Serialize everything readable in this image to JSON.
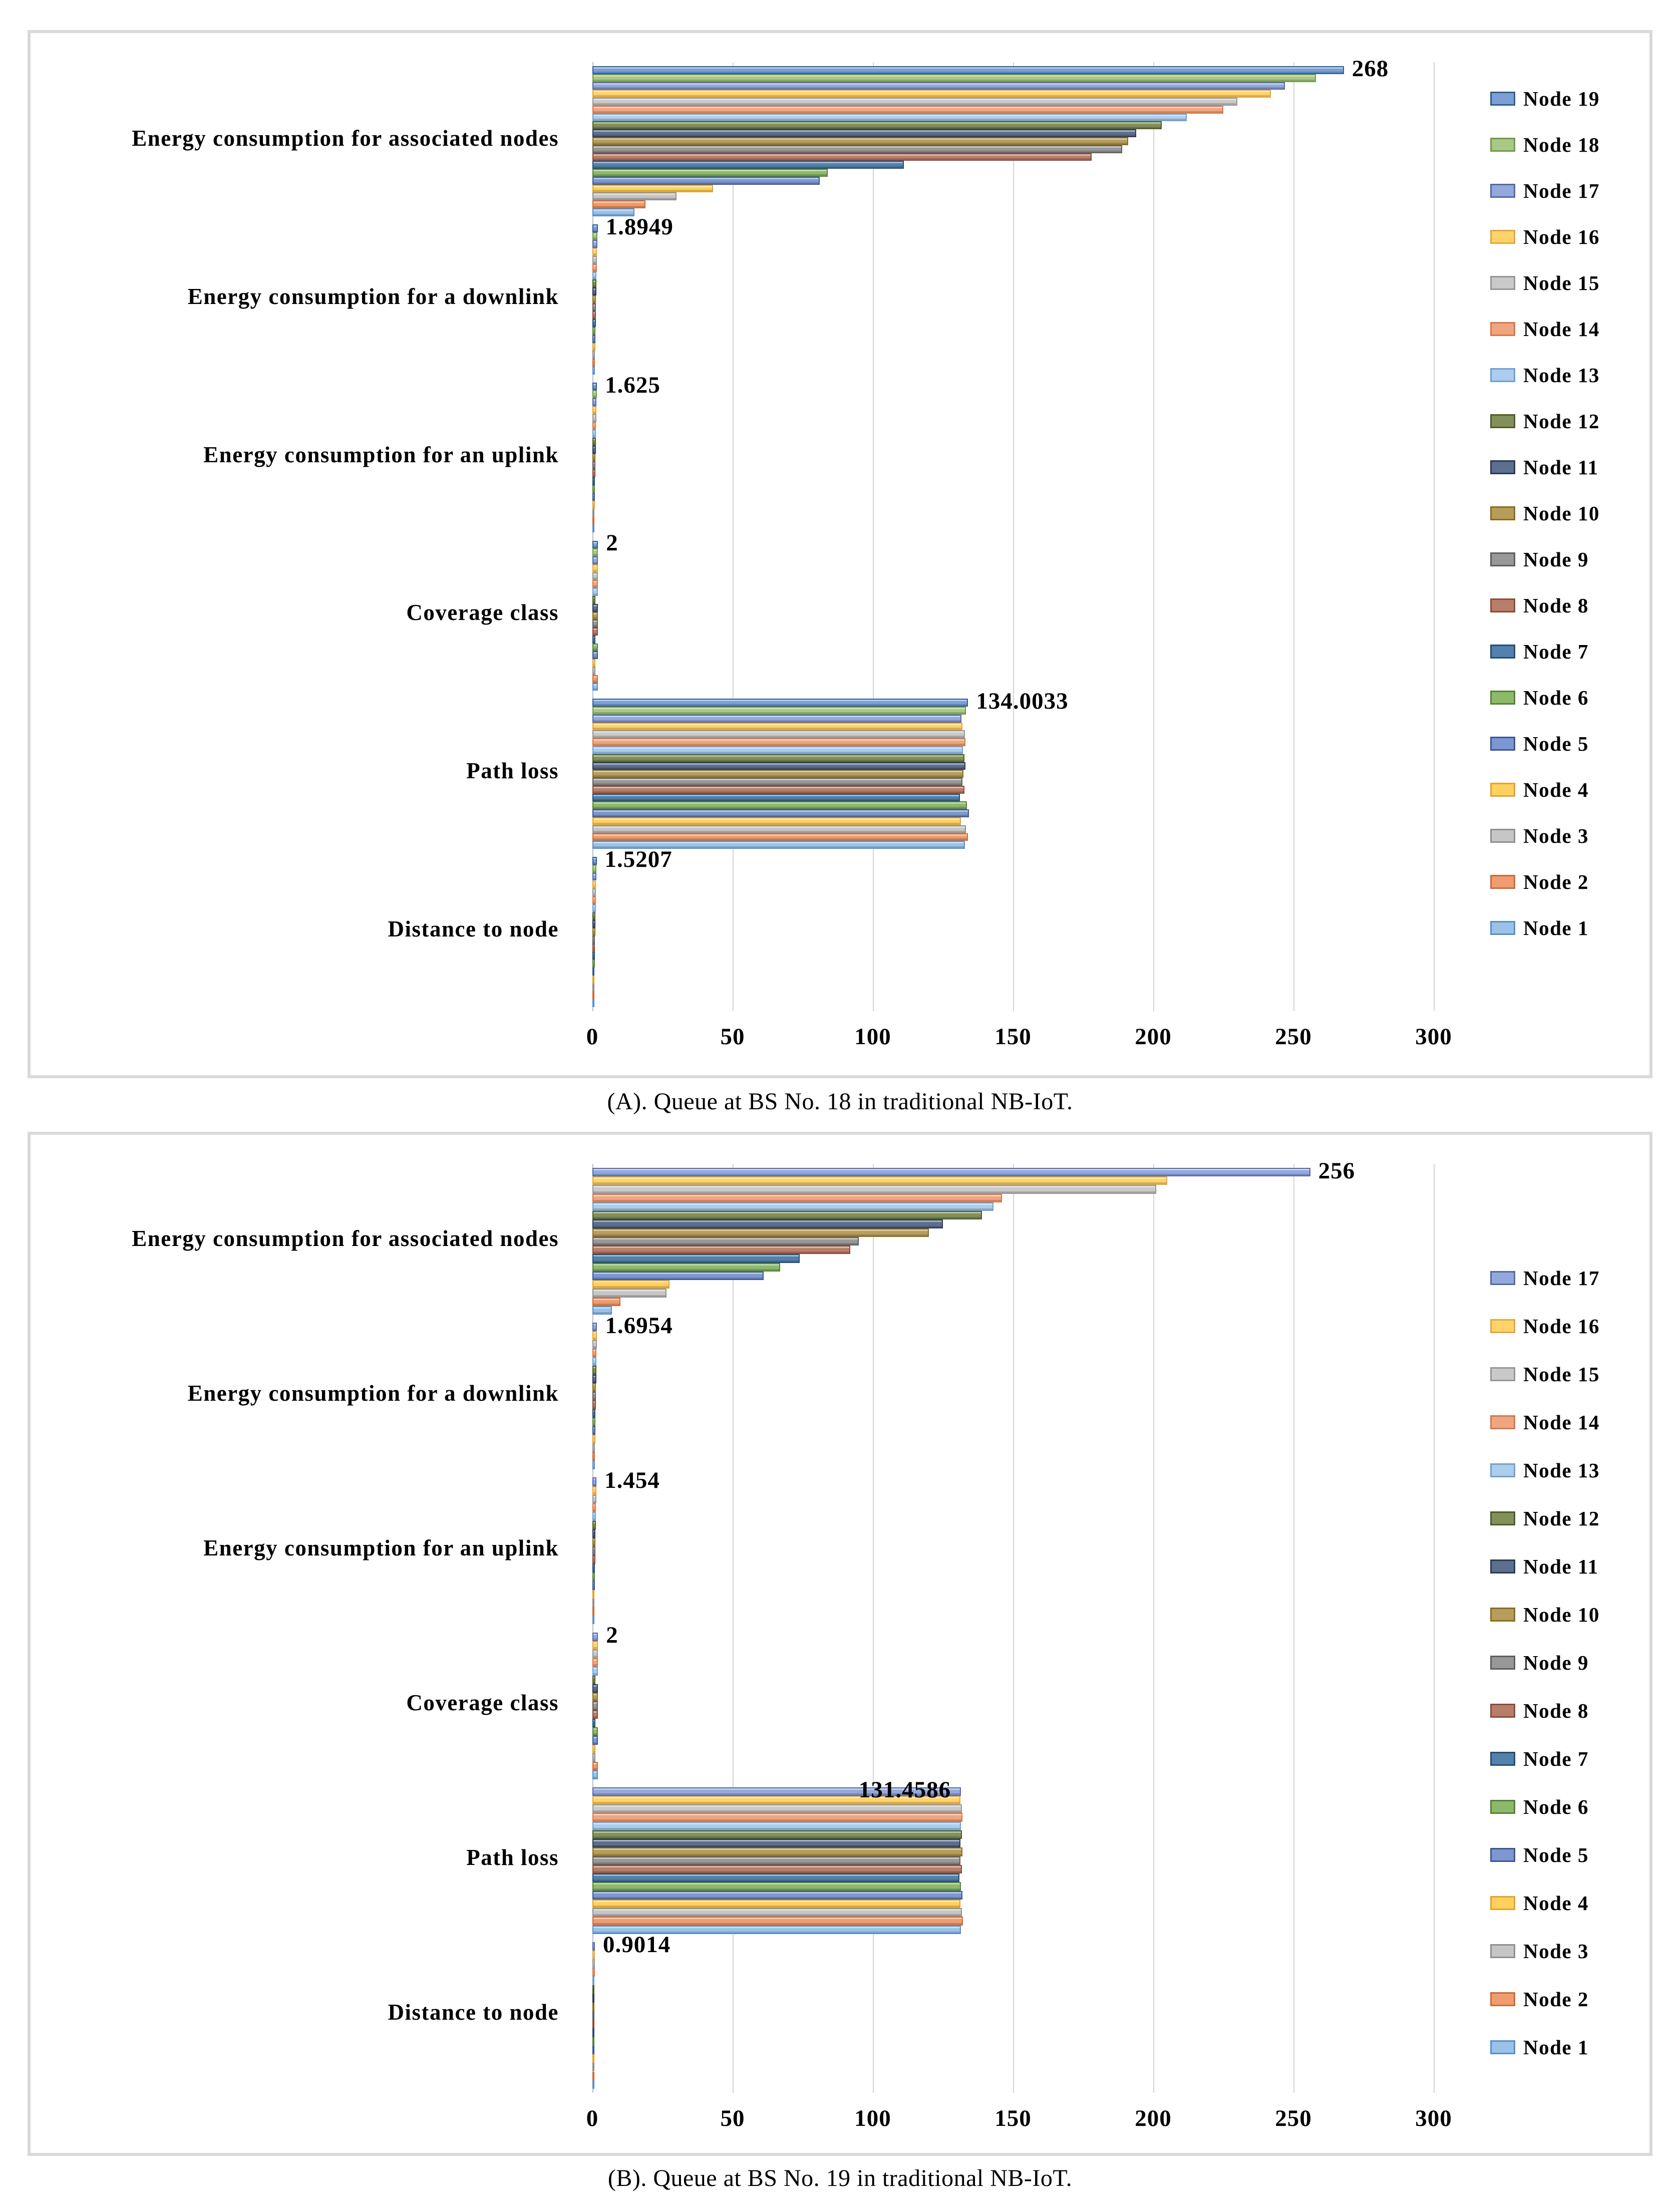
{
  "figure": {
    "captions": {
      "a": "(A). Queue at BS No. 18 in traditional NB-IoT.",
      "b": "(B). Queue at BS No. 19 in traditional NB-IoT."
    }
  },
  "palette": {
    "Node 1": {
      "fill": "#9AC2E7",
      "border": "#5590C9"
    },
    "Node 2": {
      "fill": "#EE9C70",
      "border": "#CE6B35"
    },
    "Node 3": {
      "fill": "#C6C6C6",
      "border": "#8F8F8F"
    },
    "Node 4": {
      "fill": "#FFD15E",
      "border": "#DFA32F"
    },
    "Node 5": {
      "fill": "#7C97D1",
      "border": "#3C5793"
    },
    "Node 6": {
      "fill": "#8DB96A",
      "border": "#558235"
    },
    "Node 7": {
      "fill": "#5380AC",
      "border": "#234E75"
    },
    "Node 8": {
      "fill": "#B97E69",
      "border": "#8C4B38"
    },
    "Node 9": {
      "fill": "#989898",
      "border": "#5E5E5E"
    },
    "Node 10": {
      "fill": "#B79D5C",
      "border": "#8A6D1D"
    },
    "Node 11": {
      "fill": "#5D6F8E",
      "border": "#2A3A58"
    },
    "Node 12": {
      "fill": "#82905A",
      "border": "#4D5D25"
    },
    "Node 13": {
      "fill": "#ABCDEE",
      "border": "#6FA0CE"
    },
    "Node 14": {
      "fill": "#F0A580",
      "border": "#D4784A"
    },
    "Node 15": {
      "fill": "#C9C9C9",
      "border": "#969696"
    },
    "Node 16": {
      "fill": "#FFD36A",
      "border": "#E2A63B"
    },
    "Node 17": {
      "fill": "#93A9DC",
      "border": "#5568A8"
    },
    "Node 18": {
      "fill": "#A9C887",
      "border": "#6F9C44"
    },
    "Node 19": {
      "fill": "#7AA0D4",
      "border": "#2F5E94"
    }
  },
  "chart_data": [
    {
      "type": "bar",
      "orientation": "horizontal",
      "caption": "(A). Queue at BS No. 18 in traditional NB-IoT.",
      "categories": [
        "Energy consumption for associated nodes",
        "Energy consumption for a downlink",
        "Energy consumption for an uplink",
        "Coverage class",
        "Path loss",
        "Distance to node"
      ],
      "xlim": [
        0,
        300
      ],
      "x_ticks": [
        0,
        50,
        100,
        150,
        200,
        250,
        300
      ],
      "grid": true,
      "legend_position": "right",
      "data_labels_series": "Node 19",
      "data_labels": [
        "268",
        "1.8949",
        "1.625",
        "2",
        "134.0033",
        "1.5207"
      ],
      "data_label_placement": [
        "outside",
        "outside",
        "outside",
        "outside",
        "outside",
        "outside"
      ],
      "series": [
        {
          "name": "Node 19",
          "values": [
            268,
            1.8949,
            1.625,
            2,
            134.0033,
            1.5207
          ]
        },
        {
          "name": "Node 18",
          "values": [
            258,
            1.78,
            1.52,
            2,
            133.2,
            1.42
          ]
        },
        {
          "name": "Node 17",
          "values": [
            247,
            1.7,
            1.48,
            2,
            131.6,
            1.38
          ]
        },
        {
          "name": "Node 16",
          "values": [
            242,
            1.64,
            1.42,
            2,
            131.9,
            1.32
          ]
        },
        {
          "name": "Node 15",
          "values": [
            230,
            1.58,
            1.38,
            2,
            132.8,
            1.28
          ]
        },
        {
          "name": "Node 14",
          "values": [
            225,
            1.52,
            1.32,
            2,
            133.0,
            1.22
          ]
        },
        {
          "name": "Node 13",
          "values": [
            212,
            1.48,
            1.28,
            2,
            132.2,
            1.18
          ]
        },
        {
          "name": "Node 12",
          "values": [
            203,
            1.42,
            1.22,
            1,
            132.6,
            1.12
          ]
        },
        {
          "name": "Node 11",
          "values": [
            194,
            1.38,
            1.18,
            2,
            133.0,
            1.08
          ]
        },
        {
          "name": "Node 10",
          "values": [
            191,
            1.32,
            1.12,
            2,
            132.3,
            1.02
          ]
        },
        {
          "name": "Node 9",
          "values": [
            189,
            1.28,
            1.08,
            2,
            131.9,
            0.98
          ]
        },
        {
          "name": "Node 8",
          "values": [
            178,
            1.22,
            1.02,
            2,
            132.6,
            0.92
          ]
        },
        {
          "name": "Node 7",
          "values": [
            111,
            1.18,
            0.98,
            1,
            131.1,
            0.88
          ]
        },
        {
          "name": "Node 6",
          "values": [
            84,
            1.12,
            0.92,
            2,
            133.6,
            0.82
          ]
        },
        {
          "name": "Node 5",
          "values": [
            81,
            1.08,
            0.88,
            2,
            134.2,
            0.78
          ]
        },
        {
          "name": "Node 4",
          "values": [
            43,
            1.02,
            0.82,
            1,
            131.5,
            0.72
          ]
        },
        {
          "name": "Node 3",
          "values": [
            30,
            0.98,
            0.78,
            1,
            133.2,
            0.68
          ]
        },
        {
          "name": "Node 2",
          "values": [
            19,
            0.92,
            0.72,
            2,
            134.0,
            0.62
          ]
        },
        {
          "name": "Node 1",
          "values": [
            15,
            0.88,
            0.68,
            2,
            132.8,
            0.58
          ]
        }
      ]
    },
    {
      "type": "bar",
      "orientation": "horizontal",
      "caption": "(B). Queue at BS No. 19 in traditional NB-IoT.",
      "categories": [
        "Energy consumption for associated nodes",
        "Energy consumption for a downlink",
        "Energy consumption for an uplink",
        "Coverage class",
        "Path loss",
        "Distance to node"
      ],
      "xlim": [
        0,
        300
      ],
      "x_ticks": [
        0,
        50,
        100,
        150,
        200,
        250,
        300
      ],
      "grid": true,
      "legend_position": "right",
      "data_labels_series": "Node 17",
      "data_labels": [
        "256",
        "1.6954",
        "1.454",
        "2",
        "131.4586",
        "0.9014"
      ],
      "data_label_placement": [
        "outside",
        "outside",
        "outside",
        "outside",
        "inside",
        "outside"
      ],
      "series": [
        {
          "name": "Node 17",
          "values": [
            256,
            1.6954,
            1.454,
            2,
            131.4586,
            0.9014
          ]
        },
        {
          "name": "Node 16",
          "values": [
            205,
            1.62,
            1.4,
            2,
            131.2,
            0.88
          ]
        },
        {
          "name": "Node 15",
          "values": [
            201,
            1.56,
            1.36,
            2,
            131.7,
            0.85
          ]
        },
        {
          "name": "Node 14",
          "values": [
            146,
            1.5,
            1.3,
            2,
            131.9,
            0.82
          ]
        },
        {
          "name": "Node 13",
          "values": [
            143,
            1.46,
            1.26,
            2,
            131.4,
            0.8
          ]
        },
        {
          "name": "Node 12",
          "values": [
            139,
            1.4,
            1.2,
            1,
            131.8,
            0.77
          ]
        },
        {
          "name": "Node 11",
          "values": [
            125,
            1.36,
            1.16,
            2,
            131.3,
            0.74
          ]
        },
        {
          "name": "Node 10",
          "values": [
            120,
            1.3,
            1.1,
            2,
            131.9,
            0.71
          ]
        },
        {
          "name": "Node 9",
          "values": [
            95,
            1.26,
            1.06,
            2,
            131.2,
            0.68
          ]
        },
        {
          "name": "Node 8",
          "values": [
            92,
            1.2,
            1.0,
            2,
            131.7,
            0.66
          ]
        },
        {
          "name": "Node 7",
          "values": [
            74,
            1.16,
            0.96,
            1,
            130.9,
            0.63
          ]
        },
        {
          "name": "Node 6",
          "values": [
            67,
            1.1,
            0.9,
            2,
            131.5,
            0.6
          ]
        },
        {
          "name": "Node 5",
          "values": [
            61,
            1.06,
            0.86,
            2,
            132.0,
            0.58
          ]
        },
        {
          "name": "Node 4",
          "values": [
            27.5,
            1.0,
            0.8,
            1,
            131.2,
            0.55
          ]
        },
        {
          "name": "Node 3",
          "values": [
            26.5,
            0.96,
            0.76,
            1,
            131.7,
            0.52
          ]
        },
        {
          "name": "Node 2",
          "values": [
            10,
            0.9,
            0.7,
            2,
            132.2,
            0.5
          ]
        },
        {
          "name": "Node 1",
          "values": [
            7,
            0.86,
            0.66,
            2,
            131.4,
            0.48
          ]
        }
      ]
    }
  ]
}
